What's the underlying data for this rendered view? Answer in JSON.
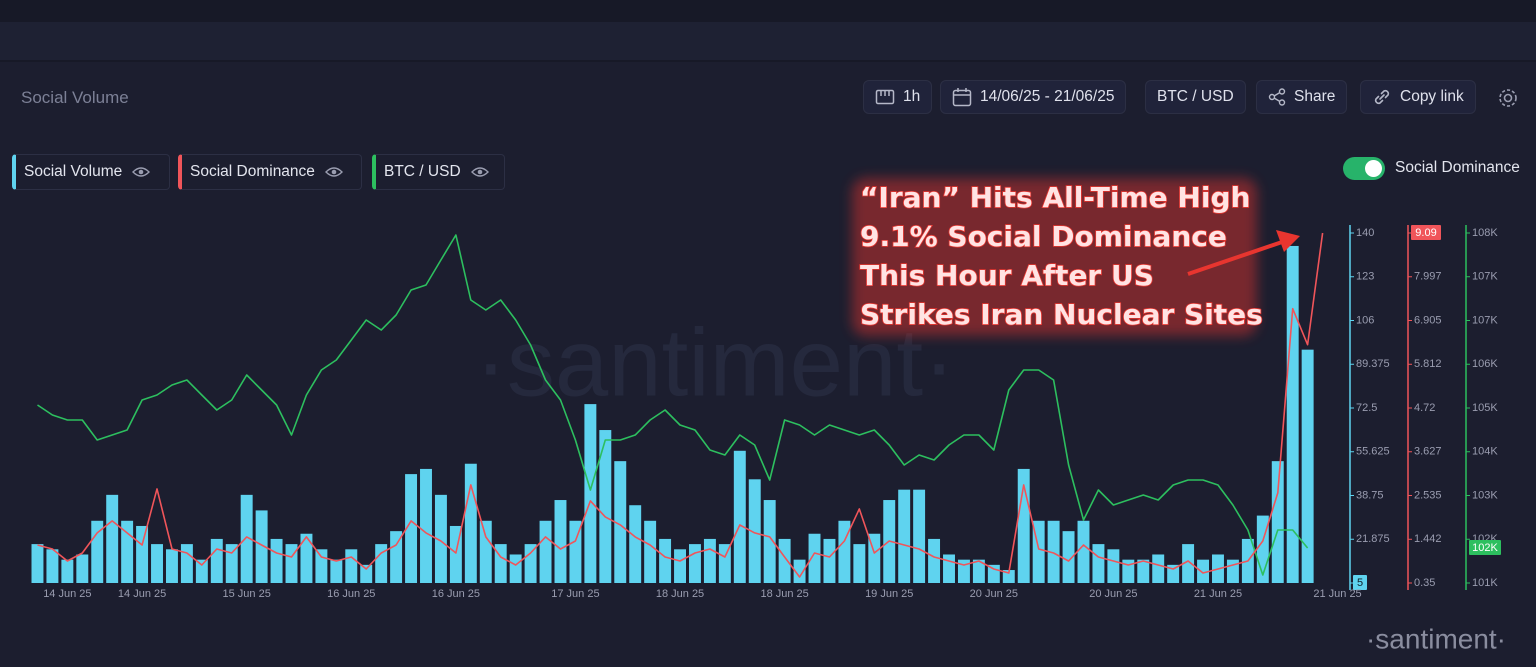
{
  "header": {
    "title": "Social Volume",
    "interval": "1h",
    "date_range": "14/06/25 - 21/06/25",
    "pair": "BTC / USD",
    "share": "Share",
    "copy_link": "Copy link"
  },
  "toggle_label": "Social Dominance",
  "logo": "·santiment·",
  "watermark": "·santiment·",
  "chart_data": {
    "type": "bar",
    "annotation": [
      "“Iran” Hits All-Time High",
      "9.1% Social Dominance",
      "This Hour  After US",
      "Strikes Iran Nuclear Sites"
    ],
    "categories": [
      null,
      null,
      "14 Jun 25",
      null,
      null,
      null,
      null,
      "14 Jun 25",
      null,
      null,
      null,
      null,
      null,
      null,
      "15 Jun 25",
      null,
      null,
      null,
      null,
      null,
      null,
      "16 Jun 25",
      null,
      null,
      null,
      null,
      null,
      null,
      "16 Jun 25",
      null,
      null,
      null,
      null,
      null,
      null,
      null,
      "17 Jun 25",
      null,
      null,
      null,
      null,
      null,
      null,
      "18 Jun 25",
      null,
      null,
      null,
      null,
      null,
      null,
      "18 Jun 25",
      null,
      null,
      null,
      null,
      null,
      null,
      "19 Jun 25",
      null,
      null,
      null,
      null,
      null,
      null,
      "20 Jun 25",
      null,
      null,
      null,
      null,
      null,
      null,
      null,
      "20 Jun 25",
      null,
      null,
      null,
      null,
      null,
      null,
      "21 Jun 25",
      null,
      null,
      null,
      null,
      null,
      null,
      null,
      "21 Jun 25"
    ],
    "series": [
      {
        "name": "Social Volume",
        "color": "#5fd3ef",
        "values": [
          20,
          18,
          14,
          16,
          29,
          39,
          29,
          27,
          20,
          18,
          20,
          14,
          22,
          20,
          39,
          33,
          22,
          20,
          24,
          18,
          14,
          18,
          12,
          20,
          25,
          47,
          49,
          39,
          27,
          51,
          29,
          20,
          16,
          20,
          29,
          37,
          29,
          74,
          64,
          52,
          35,
          29,
          22,
          18,
          20,
          22,
          20,
          56,
          45,
          37,
          22,
          14,
          24,
          22,
          29,
          20,
          24,
          37,
          41,
          41,
          22,
          16,
          14,
          14,
          12,
          10,
          49,
          29,
          29,
          25,
          29,
          20,
          18,
          14,
          14,
          16,
          12,
          20,
          14,
          16,
          14,
          22,
          31,
          52,
          135,
          95,
          null,
          null
        ]
      },
      {
        "name": "Social Dominance",
        "color": "#f0555a",
        "axis": "y2",
        "values": [
          1.3,
          1.2,
          0.9,
          1.1,
          1.6,
          1.9,
          1.6,
          1.3,
          2.7,
          1.2,
          1.1,
          0.8,
          1.2,
          1.1,
          1.5,
          1.3,
          1.1,
          1.0,
          1.5,
          1.0,
          0.9,
          1.0,
          0.7,
          1.1,
          1.3,
          1.9,
          1.6,
          1.4,
          1.1,
          2.8,
          1.5,
          1.0,
          0.8,
          1.1,
          1.5,
          1.2,
          1.4,
          2.4,
          2.0,
          1.8,
          1.5,
          1.3,
          1.0,
          0.9,
          1.1,
          1.2,
          1.0,
          1.8,
          1.6,
          1.5,
          1.0,
          0.5,
          1.1,
          1.0,
          1.4,
          2.2,
          1.1,
          1.4,
          1.3,
          1.2,
          1.0,
          0.9,
          0.8,
          0.9,
          0.7,
          0.6,
          2.8,
          1.2,
          1.1,
          0.9,
          1.3,
          1.0,
          0.9,
          0.8,
          0.9,
          0.8,
          0.7,
          0.9,
          0.6,
          0.7,
          0.8,
          0.9,
          1.4,
          2.6,
          7.2,
          6.3,
          9.09,
          null
        ]
      },
      {
        "name": "BTC / USD",
        "color": "#2dbf5f",
        "axis": "y3",
        "last_label": "102K",
        "values": [
          104560,
          104360,
          104260,
          104260,
          103860,
          103960,
          104060,
          104660,
          104760,
          104960,
          105060,
          104760,
          104460,
          104660,
          105160,
          104860,
          104560,
          103960,
          104760,
          105260,
          105460,
          105860,
          106260,
          106060,
          106360,
          106860,
          106960,
          107460,
          107960,
          106660,
          106460,
          106660,
          106260,
          105760,
          105060,
          104660,
          103860,
          102860,
          103860,
          103860,
          103960,
          104260,
          104460,
          104160,
          104060,
          103660,
          103560,
          103960,
          103760,
          103060,
          104260,
          104160,
          103960,
          104160,
          104060,
          103960,
          104060,
          103760,
          103360,
          103560,
          103460,
          103760,
          103960,
          103960,
          103660,
          104860,
          105260,
          105260,
          105060,
          103360,
          102260,
          102860,
          102560,
          102660,
          102760,
          102660,
          102960,
          103060,
          103060,
          102960,
          102560,
          102060,
          101160,
          102060,
          102060,
          101700,
          null,
          null
        ]
      }
    ],
    "ylim": [
      5,
      140
    ],
    "yticks": [
      5,
      21.875,
      38.75,
      55.625,
      72.5,
      89.375,
      {
        "value": 106.25,
        "label": "106"
      },
      {
        "value": 123.125,
        "label": "123"
      },
      140
    ],
    "y2lim": [
      0.35,
      9.09
    ],
    "y2ticks": [
      0.35,
      1.442,
      2.535,
      3.627,
      4.72,
      5.812,
      6.905,
      7.997,
      9.09
    ],
    "y3lim": [
      101000,
      108000
    ],
    "y3ticks": [
      {
        "value": 101000,
        "label": "101K"
      },
      {
        "value": 101875,
        "label": "102K"
      },
      {
        "value": 102750,
        "label": "103K"
      },
      {
        "value": 103625,
        "label": "104K"
      },
      {
        "value": 104500,
        "label": "105K"
      },
      {
        "value": 105375,
        "label": "106K"
      },
      {
        "value": 106250,
        "label": "107K"
      },
      {
        "value": 107125,
        "label": "107K"
      },
      {
        "value": 108000,
        "label": "108K"
      }
    ]
  }
}
